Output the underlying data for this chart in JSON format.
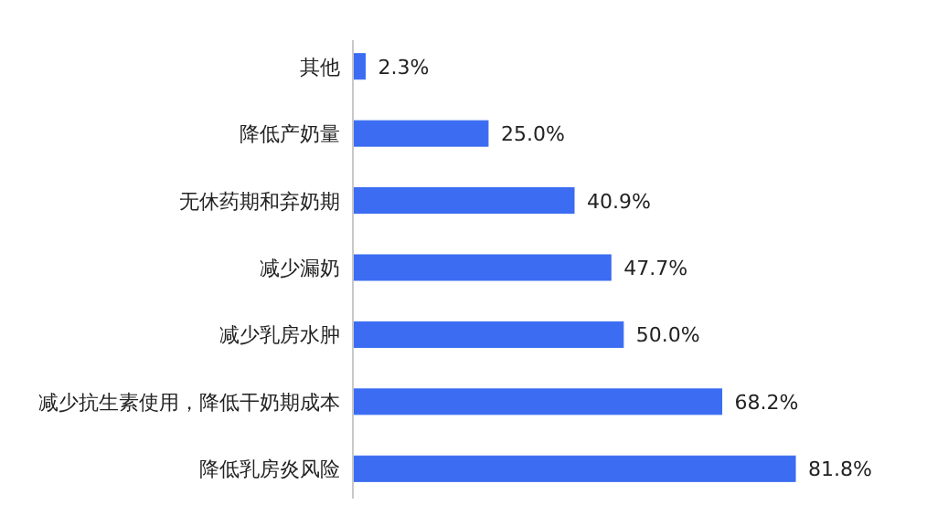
{
  "chart_data": {
    "type": "bar",
    "orientation": "horizontal",
    "categories": [
      "其他",
      "降低产奶量",
      "无休药期和弃奶期",
      "减少漏奶",
      "减少乳房水肿",
      "减少抗生素使用，降低干奶期成本",
      "降低乳房炎风险"
    ],
    "values": [
      2.3,
      25.0,
      40.9,
      47.7,
      50.0,
      68.2,
      81.8
    ],
    "value_labels": [
      "2.3%",
      "25.0%",
      "40.9%",
      "47.7%",
      "50.0%",
      "68.2%",
      "81.8%"
    ],
    "color": "#3b6cf2"
  }
}
